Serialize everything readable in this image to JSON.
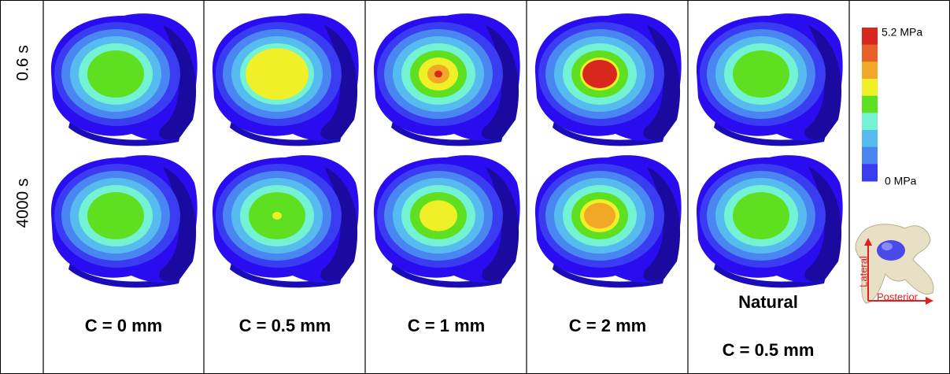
{
  "row_labels": [
    "0.6 s",
    "4000 s"
  ],
  "columns": [
    {
      "label": "C = 0 mm"
    },
    {
      "label": "C = 0.5 mm"
    },
    {
      "label": "C = 1 mm"
    },
    {
      "label": "C = 2 mm"
    },
    {
      "sublabel": "Natural",
      "label": "C = 0.5 mm"
    }
  ],
  "colorbar": {
    "max_label": "5.2 MPa",
    "min_label": "0 MPa"
  },
  "orientation": {
    "vertical": "Lateral",
    "horizontal": "Posterior"
  }
}
